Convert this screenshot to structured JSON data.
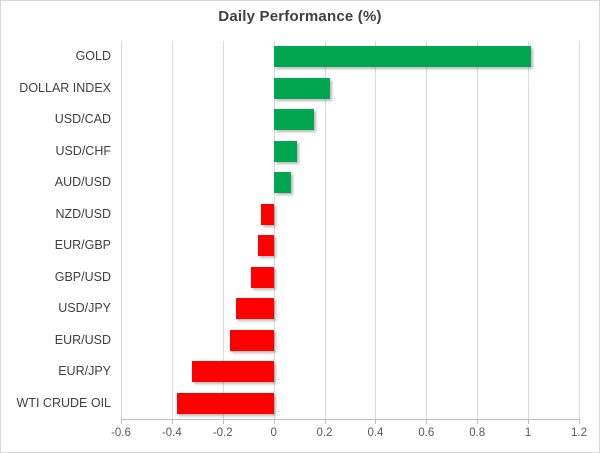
{
  "chart_data": {
    "type": "bar",
    "orientation": "horizontal",
    "title": "Daily Performance (%)",
    "categories": [
      "GOLD",
      "DOLLAR INDEX",
      "USD/CAD",
      "USD/CHF",
      "AUD/USD",
      "NZD/USD",
      "EUR/GBP",
      "GBP/USD",
      "USD/JPY",
      "EUR/USD",
      "EUR/JPY",
      "WTI CRUDE OIL"
    ],
    "values": [
      1.01,
      0.22,
      0.16,
      0.09,
      0.07,
      -0.05,
      -0.06,
      -0.09,
      -0.15,
      -0.17,
      -0.32,
      -0.38
    ],
    "xlabel": "",
    "ylabel": "",
    "xlim": [
      -0.6,
      1.2
    ],
    "xticks": [
      -0.6,
      -0.4,
      -0.2,
      0,
      0.2,
      0.4,
      0.6,
      0.8,
      1,
      1.2
    ],
    "xtick_labels": [
      "-0.6",
      "-0.4",
      "-0.2",
      "0",
      "0.2",
      "0.4",
      "0.6",
      "0.8",
      "1",
      "1.2"
    ],
    "grid": "vertical-on",
    "legend": "none",
    "colors": {
      "positive": "#00a650",
      "negative": "#ff0000",
      "gridline": "#d9d9d9",
      "axis": "#bfbfbf",
      "title_text": "#404040",
      "label_text": "#404040",
      "tick_text": "#595959"
    }
  }
}
